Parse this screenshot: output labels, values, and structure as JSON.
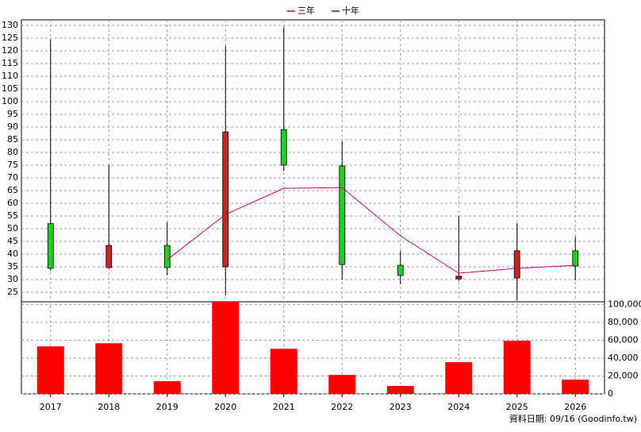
{
  "chart_data": {
    "type": "candlestick",
    "categories": [
      "2017",
      "2018",
      "2019",
      "2020",
      "2021",
      "2022",
      "2023",
      "2024",
      "2025",
      "2026"
    ],
    "open": [
      52,
      34.7,
      43.4,
      35,
      89,
      74.7,
      35.6,
      30.3,
      30.6,
      41.3
    ],
    "high": [
      124.5,
      75,
      52.5,
      121.9,
      129.4,
      84.4,
      41.3,
      55,
      52.2,
      46.9
    ],
    "low": [
      33.5,
      34.4,
      31.6,
      23.8,
      72.8,
      30,
      28.1,
      29.4,
      21.6,
      29.7
    ],
    "close": [
      34.4,
      43.4,
      34.7,
      88.1,
      75,
      35.9,
      31.6,
      31.3,
      41.3,
      35.3
    ],
    "up_color": "#cc2222",
    "down_color": "#22cc22",
    "series": [
      {
        "name": "三年",
        "color": "#cc0066",
        "values": [
          null,
          null,
          37.8,
          55.6,
          65.9,
          66.2,
          47.2,
          32.5,
          34.4,
          35.6
        ]
      },
      {
        "name": "十年",
        "color": "#6600cc",
        "values": [
          null,
          null,
          null,
          null,
          null,
          null,
          null,
          null,
          null,
          null
        ]
      }
    ],
    "ylim": [
      21.25,
      132.2
    ],
    "yticks": [
      25,
      30,
      35,
      40,
      45,
      50,
      55,
      60,
      65,
      70,
      75,
      80,
      85,
      90,
      95,
      100,
      105,
      110,
      115,
      120,
      125,
      130
    ],
    "grid": true,
    "volume": {
      "color": "#ff0000",
      "values": [
        53100,
        56600,
        14200,
        103000,
        50400,
        21200,
        8800,
        35400,
        59300,
        15900
      ],
      "ylim": [
        0,
        103000
      ],
      "yticks": [
        0,
        {
          "value": 20000,
          "label": "20,000"
        },
        {
          "value": 40000,
          "label": "40,000"
        },
        {
          "value": 60000,
          "label": "60,000"
        },
        {
          "value": 80000,
          "label": "80,000"
        },
        {
          "value": 100000,
          "label": "100,000"
        }
      ]
    },
    "footer": "資料日期: 09/16 (Goodinfo.tw)"
  }
}
